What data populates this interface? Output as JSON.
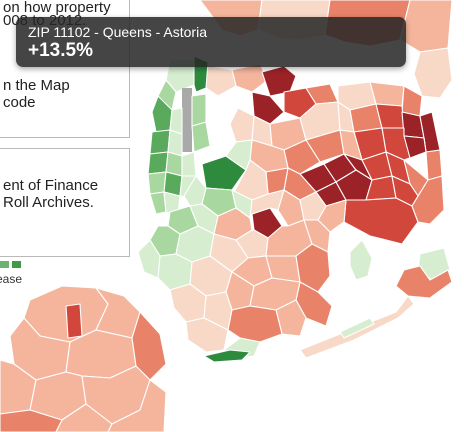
{
  "description_panel": {
    "line1": "on how property",
    "line2": "008 to 2012.",
    "line3": "n the Map",
    "line4": "code"
  },
  "source_panel": {
    "line1": "ent of Finance",
    "line2": "Roll Archives."
  },
  "legend": {
    "label": "ease",
    "colors": [
      "#6fb26f",
      "#3f9a48"
    ]
  },
  "tooltip": {
    "title": "ZIP 11102 - Queens - Astoria",
    "value": "+13.5%"
  },
  "map_colors": {
    "water": "#ffffff",
    "border": "#ffffff",
    "dark_red": "#9b2328",
    "red": "#d2473c",
    "salmon": "#e8836a",
    "light_salmon": "#f4b59c",
    "pale_peach": "#f8d9c8",
    "pale_green": "#d6edd0",
    "light_green": "#a8d8a0",
    "green": "#5aaa5e",
    "dark_green": "#2e8b3e",
    "highway_gray": "#a9a9a9"
  }
}
